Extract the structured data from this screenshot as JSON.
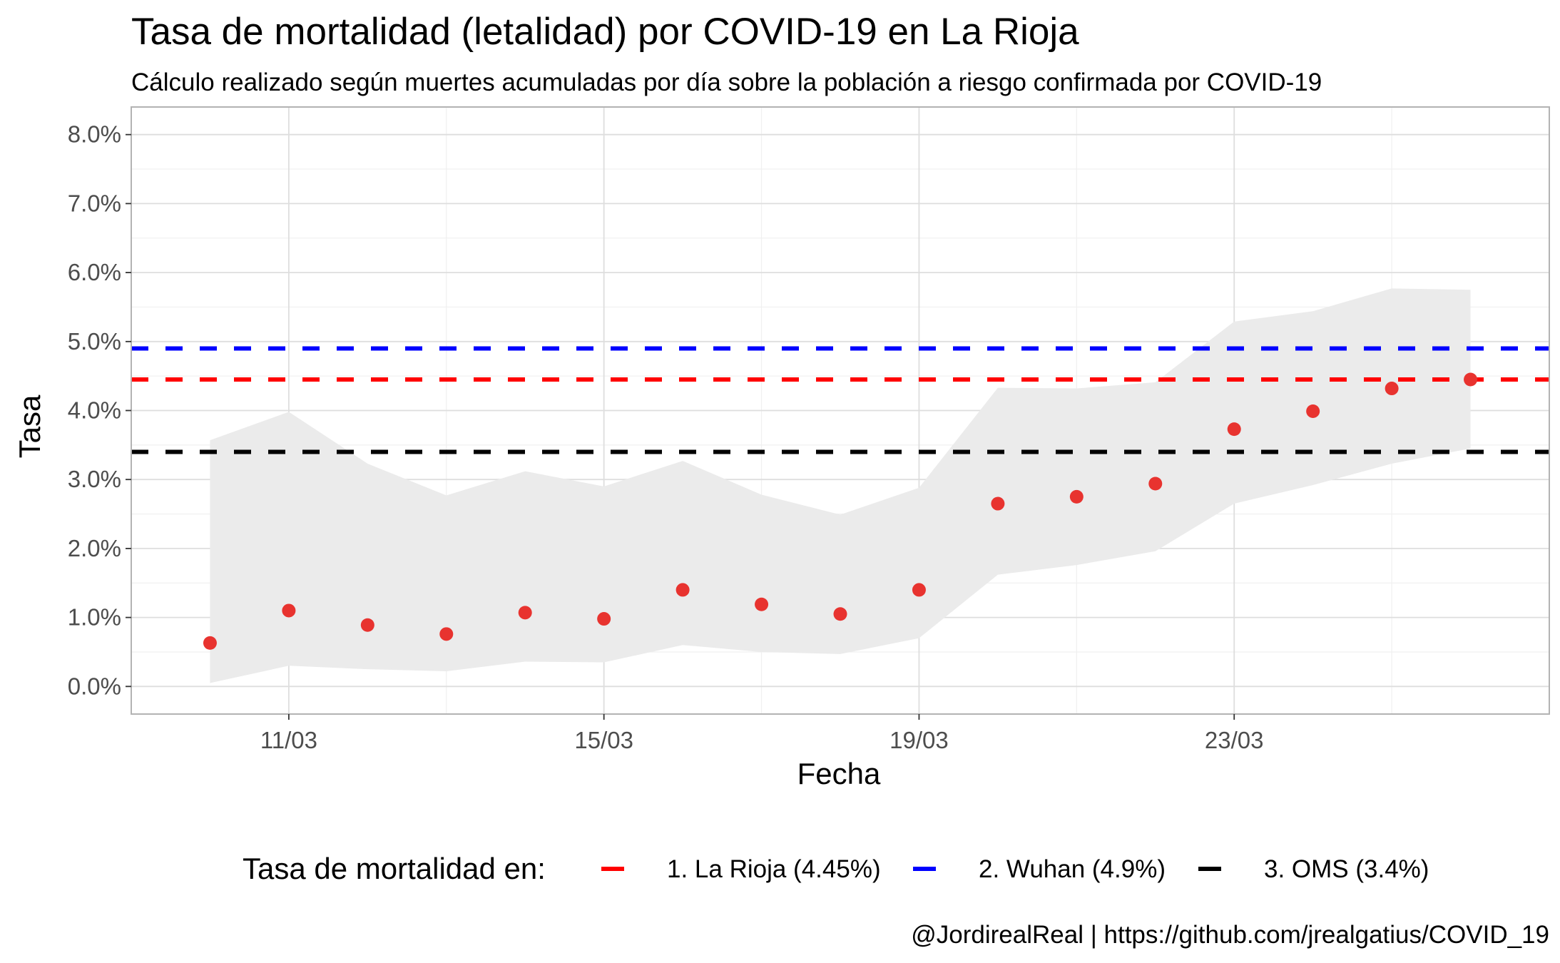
{
  "chart_data": {
    "type": "scatter",
    "title": "Tasa de mortalidad (letalidad) por COVID-19 en La Rioja",
    "subtitle": "Cálculo realizado según muertes acumuladas por día sobre la población a riesgo confirmada por COVID-19",
    "xlabel": "Fecha",
    "ylabel": "Tasa",
    "x_tick_labels": [
      "11/03",
      "15/03",
      "19/03",
      "23/03"
    ],
    "y_tick_labels": [
      "0.0%",
      "1.0%",
      "2.0%",
      "3.0%",
      "4.0%",
      "5.0%",
      "6.0%",
      "7.0%",
      "8.0%"
    ],
    "ylim": [
      -0.4,
      8.4
    ],
    "xlim": [
      "09/03",
      "27/03"
    ],
    "grid": true,
    "x": [
      "10/03",
      "11/03",
      "12/03",
      "13/03",
      "14/03",
      "15/03",
      "16/03",
      "17/03",
      "18/03",
      "19/03",
      "20/03",
      "21/03",
      "22/03",
      "23/03",
      "24/03",
      "25/03",
      "26/03"
    ],
    "series": [
      {
        "values": [
          0.63,
          1.1,
          0.89,
          0.76,
          1.07,
          0.98,
          1.4,
          1.19,
          1.05,
          1.4,
          2.65,
          2.75,
          2.94,
          3.73,
          3.99,
          4.32,
          4.45
        ],
        "color": "#e8332f"
      }
    ],
    "confidence_band": {
      "lower": [
        0.05,
        0.3,
        0.25,
        0.22,
        0.36,
        0.35,
        0.6,
        0.5,
        0.47,
        0.7,
        1.62,
        1.76,
        1.96,
        2.65,
        2.92,
        3.23,
        3.45
      ],
      "upper": [
        3.57,
        3.98,
        3.23,
        2.77,
        3.12,
        2.9,
        3.27,
        2.78,
        2.49,
        2.88,
        4.33,
        4.32,
        4.41,
        5.29,
        5.44,
        5.77,
        5.75
      ],
      "color": "#ebebeb"
    },
    "reference_lines": [
      {
        "label": "1. La Rioja (4.45%)",
        "value": 4.45,
        "color": "#ff0000"
      },
      {
        "label": "2. Wuhan (4.9%)",
        "value": 4.9,
        "color": "#0000ff"
      },
      {
        "label": "3. OMS (3.4%)",
        "value": 3.4,
        "color": "#000000"
      }
    ],
    "legend": {
      "title": "Tasa de mortalidad en:",
      "placement": "bottom"
    },
    "caption": "@JordirealReal | https://github.com/jrealgatius/COVID_19"
  }
}
